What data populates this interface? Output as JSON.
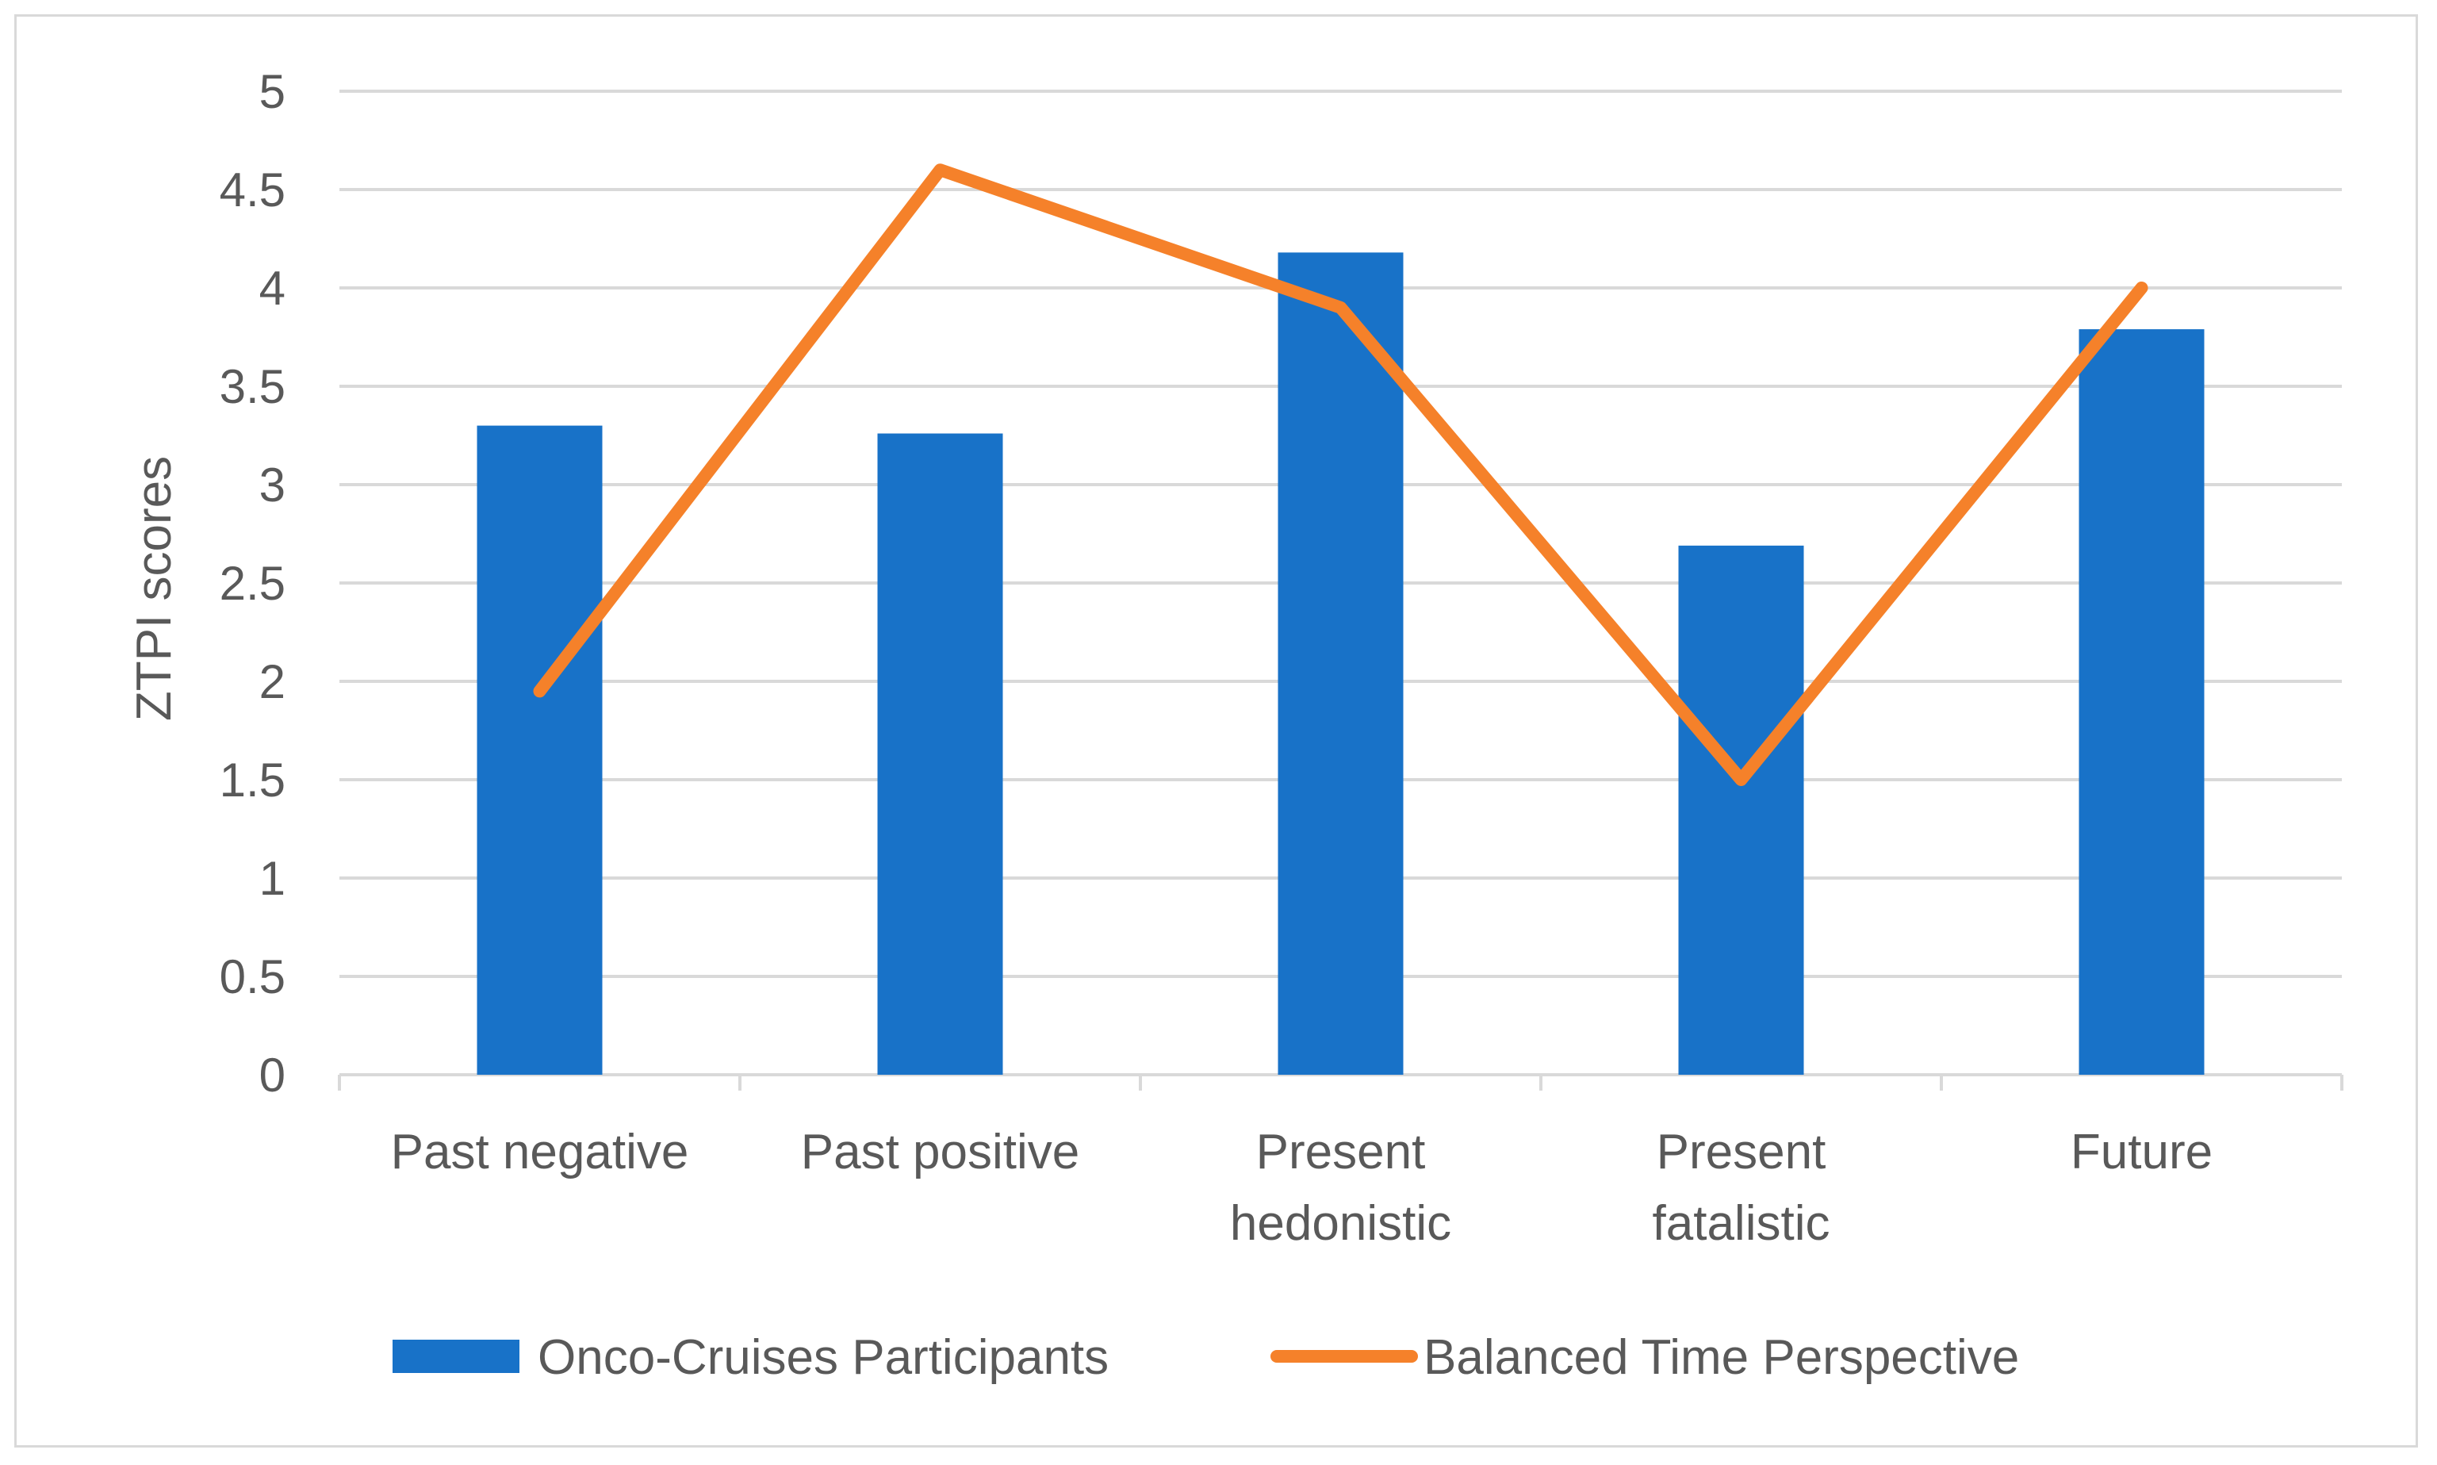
{
  "chart_data": {
    "type": "bar",
    "title": "",
    "xlabel": "",
    "ylabel": "ZTPI scores",
    "ylim": [
      0,
      5
    ],
    "y_ticks": [
      "0",
      "0.5",
      "1",
      "1.5",
      "2",
      "2.5",
      "3",
      "3.5",
      "4",
      "4.5",
      "5"
    ],
    "categories": [
      [
        "Past negative"
      ],
      [
        "Past positive"
      ],
      [
        "Present",
        "hedonistic"
      ],
      [
        "Present",
        "fatalistic"
      ],
      [
        "Future"
      ]
    ],
    "series": [
      {
        "name": "Onco-Cruises Participants",
        "type": "bar",
        "color": "#1872c8",
        "values": [
          3.3,
          3.26,
          4.18,
          2.69,
          3.79
        ]
      },
      {
        "name": "Balanced Time Perspective",
        "type": "line",
        "color": "#f5812a",
        "values": [
          1.95,
          4.6,
          3.9,
          1.5,
          4.0
        ]
      }
    ],
    "grid": true,
    "legend_position": "bottom"
  }
}
